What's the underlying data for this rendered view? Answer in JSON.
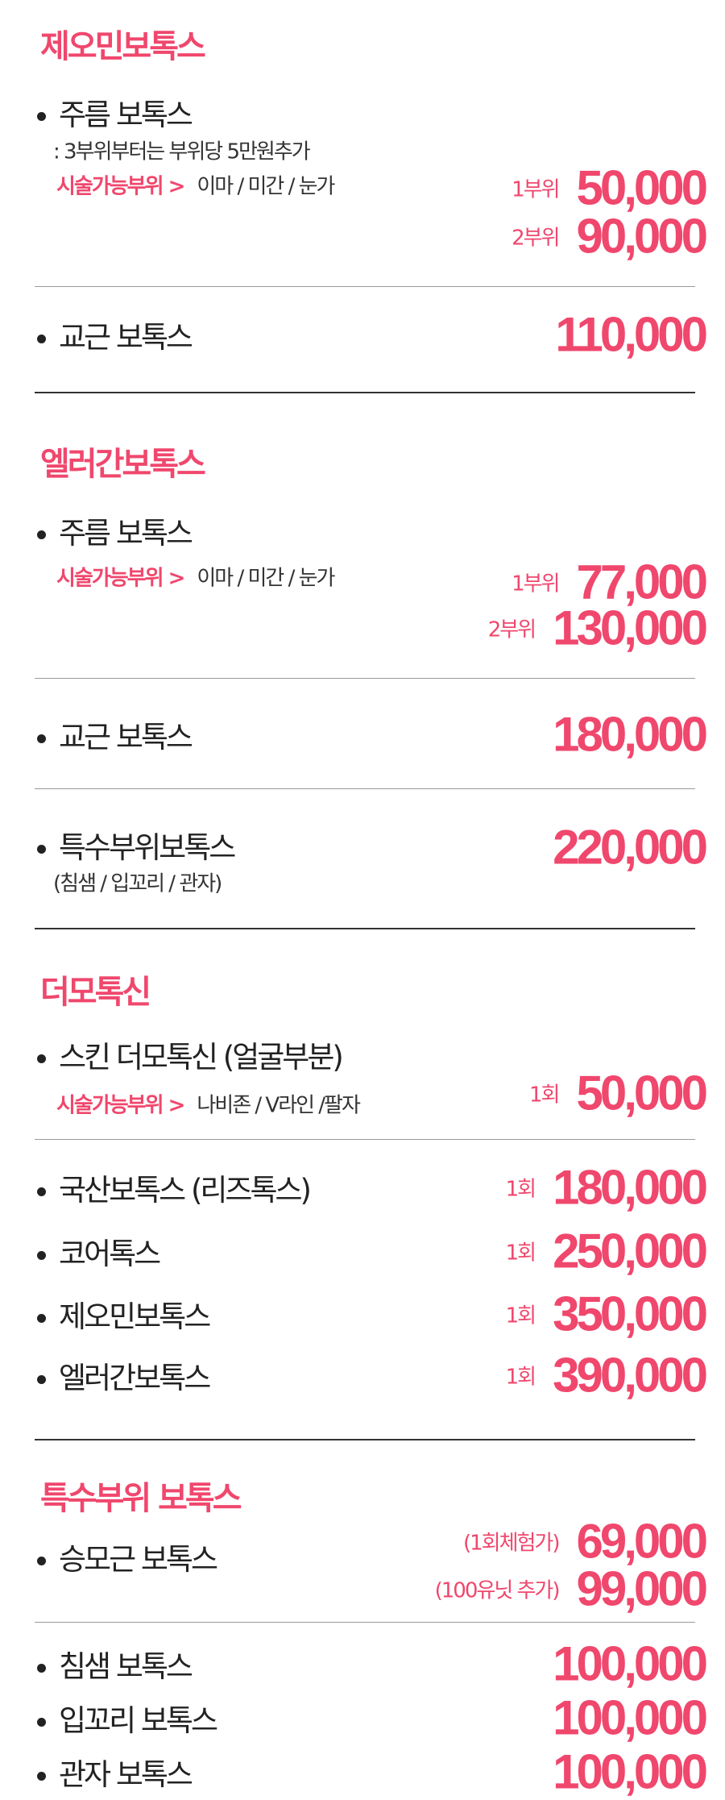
{
  "accent_color": "#f0476d",
  "sections": [
    {
      "title": "제오민보톡스",
      "items": [
        {
          "name": "주름 보톡스",
          "note": ": 3부위부터는 부위당 5만원추가",
          "area_label": "시술가능부위 >",
          "areas": "이마 / 미간 / 눈가",
          "prices": [
            {
              "label": "1부위",
              "value": "50,000"
            },
            {
              "label": "2부위",
              "value": "90,000"
            }
          ]
        },
        {
          "name": "교근 보톡스",
          "prices": [
            {
              "label": "",
              "value": "110,000"
            }
          ]
        }
      ]
    },
    {
      "title": "엘러간보톡스",
      "items": [
        {
          "name": "주름 보톡스",
          "area_label": "시술가능부위 >",
          "areas": "이마 / 미간 / 눈가",
          "prices": [
            {
              "label": "1부위",
              "value": "77,000"
            },
            {
              "label": "2부위",
              "value": "130,000"
            }
          ]
        },
        {
          "name": "교근 보톡스",
          "prices": [
            {
              "label": "",
              "value": "180,000"
            }
          ]
        },
        {
          "name": "특수부위보톡스",
          "note": "(침샘 / 입꼬리 / 관자)",
          "prices": [
            {
              "label": "",
              "value": "220,000"
            }
          ]
        }
      ]
    },
    {
      "title": "더모톡신",
      "items": [
        {
          "name": "스킨 더모톡신 (얼굴부분)",
          "area_label": "시술가능부위 >",
          "areas": "나비존 / V라인 /팔자",
          "prices": [
            {
              "label": "1회",
              "value": "50,000"
            }
          ]
        },
        {
          "name": "국산보톡스 (리즈톡스)",
          "prices": [
            {
              "label": "1회",
              "value": "180,000"
            }
          ]
        },
        {
          "name": "코어톡스",
          "prices": [
            {
              "label": "1회",
              "value": "250,000"
            }
          ]
        },
        {
          "name": "제오민보톡스",
          "prices": [
            {
              "label": "1회",
              "value": "350,000"
            }
          ]
        },
        {
          "name": "엘러간보톡스",
          "prices": [
            {
              "label": "1회",
              "value": "390,000"
            }
          ]
        }
      ]
    },
    {
      "title": "특수부위 보톡스",
      "items": [
        {
          "name": "승모근 보톡스",
          "prices": [
            {
              "label": "(1회체험가)",
              "value": "69,000"
            },
            {
              "label": "(100유닛 추가)",
              "value": "99,000"
            }
          ]
        },
        {
          "name": "침샘 보톡스",
          "prices": [
            {
              "label": "",
              "value": "100,000"
            }
          ]
        },
        {
          "name": "입꼬리 보톡스",
          "prices": [
            {
              "label": "",
              "value": "100,000"
            }
          ]
        },
        {
          "name": "관자 보톡스",
          "prices": [
            {
              "label": "",
              "value": "100,000"
            }
          ]
        }
      ]
    }
  ]
}
